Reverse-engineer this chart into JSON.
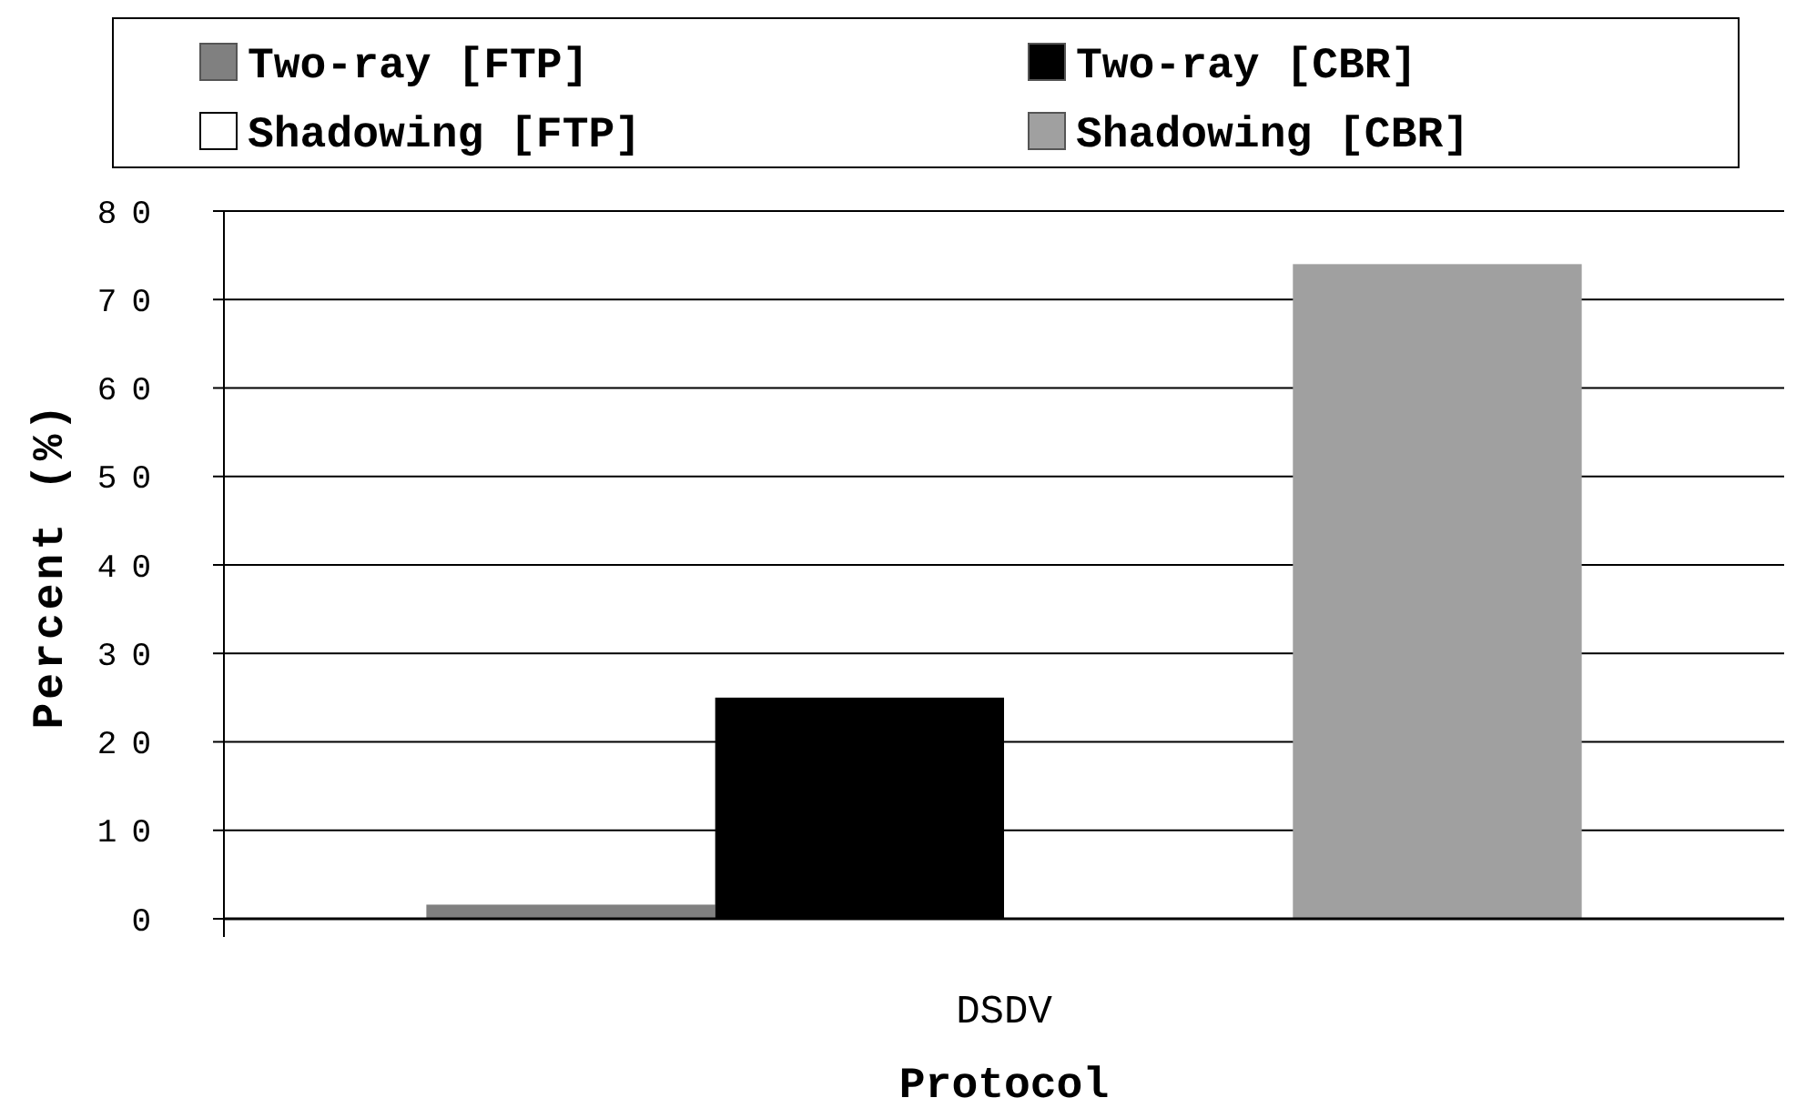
{
  "chart_data": {
    "type": "bar",
    "xlabel": "Protocol",
    "ylabel": "Percent (%)",
    "categories": [
      "DSDV"
    ],
    "series": [
      {
        "name": "Two-ray [FTP]",
        "color": "#808080",
        "values": [
          1.6
        ]
      },
      {
        "name": "Two-ray [CBR]",
        "color": "#000000",
        "values": [
          25
        ]
      },
      {
        "name": "Shadowing [FTP]",
        "color": "#ffffff",
        "values": [
          0
        ]
      },
      {
        "name": "Shadowing [CBR]",
        "color": "#a0a0a0",
        "values": [
          74
        ]
      }
    ],
    "ylim": [
      0,
      80
    ],
    "yticks": [
      0,
      10,
      20,
      30,
      40,
      50,
      60,
      70,
      80
    ],
    "grid": "y",
    "legend": "top"
  }
}
